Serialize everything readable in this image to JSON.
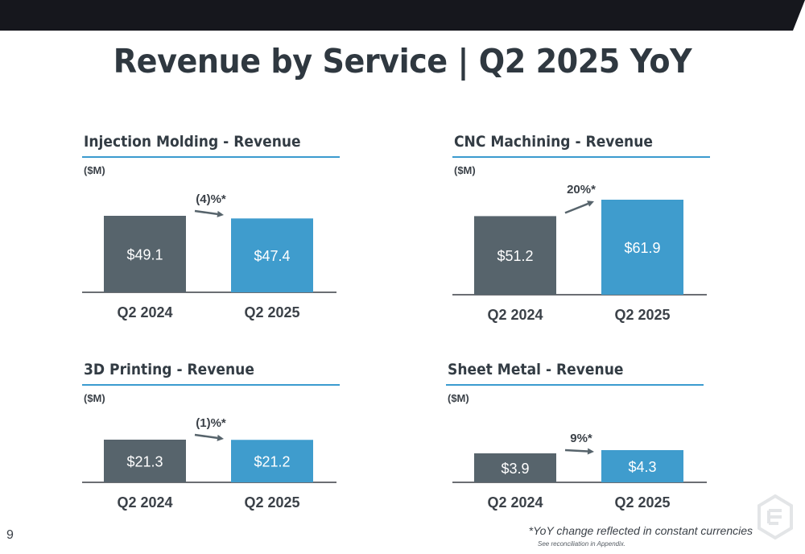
{
  "page": {
    "title": "Revenue by Service | Q2 2025 YoY",
    "page_number": "9",
    "footnote": "*YoY change reflected in constant currencies",
    "footnote_sub": "See reconciliation in Appendix."
  },
  "colors": {
    "q2_2024_bar": "#57646c",
    "q2_2025_bar": "#3f9ccd",
    "rule": "#3b9bcf",
    "arrow": "#57646c",
    "topbar": "#16171d"
  },
  "chart_data": [
    {
      "type": "bar",
      "title": "Injection Molding - Revenue",
      "unit": "($M)",
      "categories": [
        "Q2 2024",
        "Q2 2025"
      ],
      "values": [
        49.1,
        47.4
      ],
      "value_labels": [
        "$49.1",
        "$47.4"
      ],
      "change_label": "(4)%*"
    },
    {
      "type": "bar",
      "title": "CNC Machining - Revenue",
      "unit": "($M)",
      "categories": [
        "Q2 2024",
        "Q2 2025"
      ],
      "values": [
        51.2,
        61.9
      ],
      "value_labels": [
        "$51.2",
        "$61.9"
      ],
      "change_label": "20%*"
    },
    {
      "type": "bar",
      "title": "3D Printing - Revenue",
      "unit": "($M)",
      "categories": [
        "Q2 2024",
        "Q2 2025"
      ],
      "values": [
        21.3,
        21.2
      ],
      "value_labels": [
        "$21.3",
        "$21.2"
      ],
      "change_label": "(1)%*"
    },
    {
      "type": "bar",
      "title": "Sheet Metal - Revenue",
      "unit": "($M)",
      "categories": [
        "Q2 2024",
        "Q2 2025"
      ],
      "values": [
        3.9,
        4.3
      ],
      "value_labels": [
        "$3.9",
        "$4.3"
      ],
      "change_label": "9%*"
    }
  ]
}
